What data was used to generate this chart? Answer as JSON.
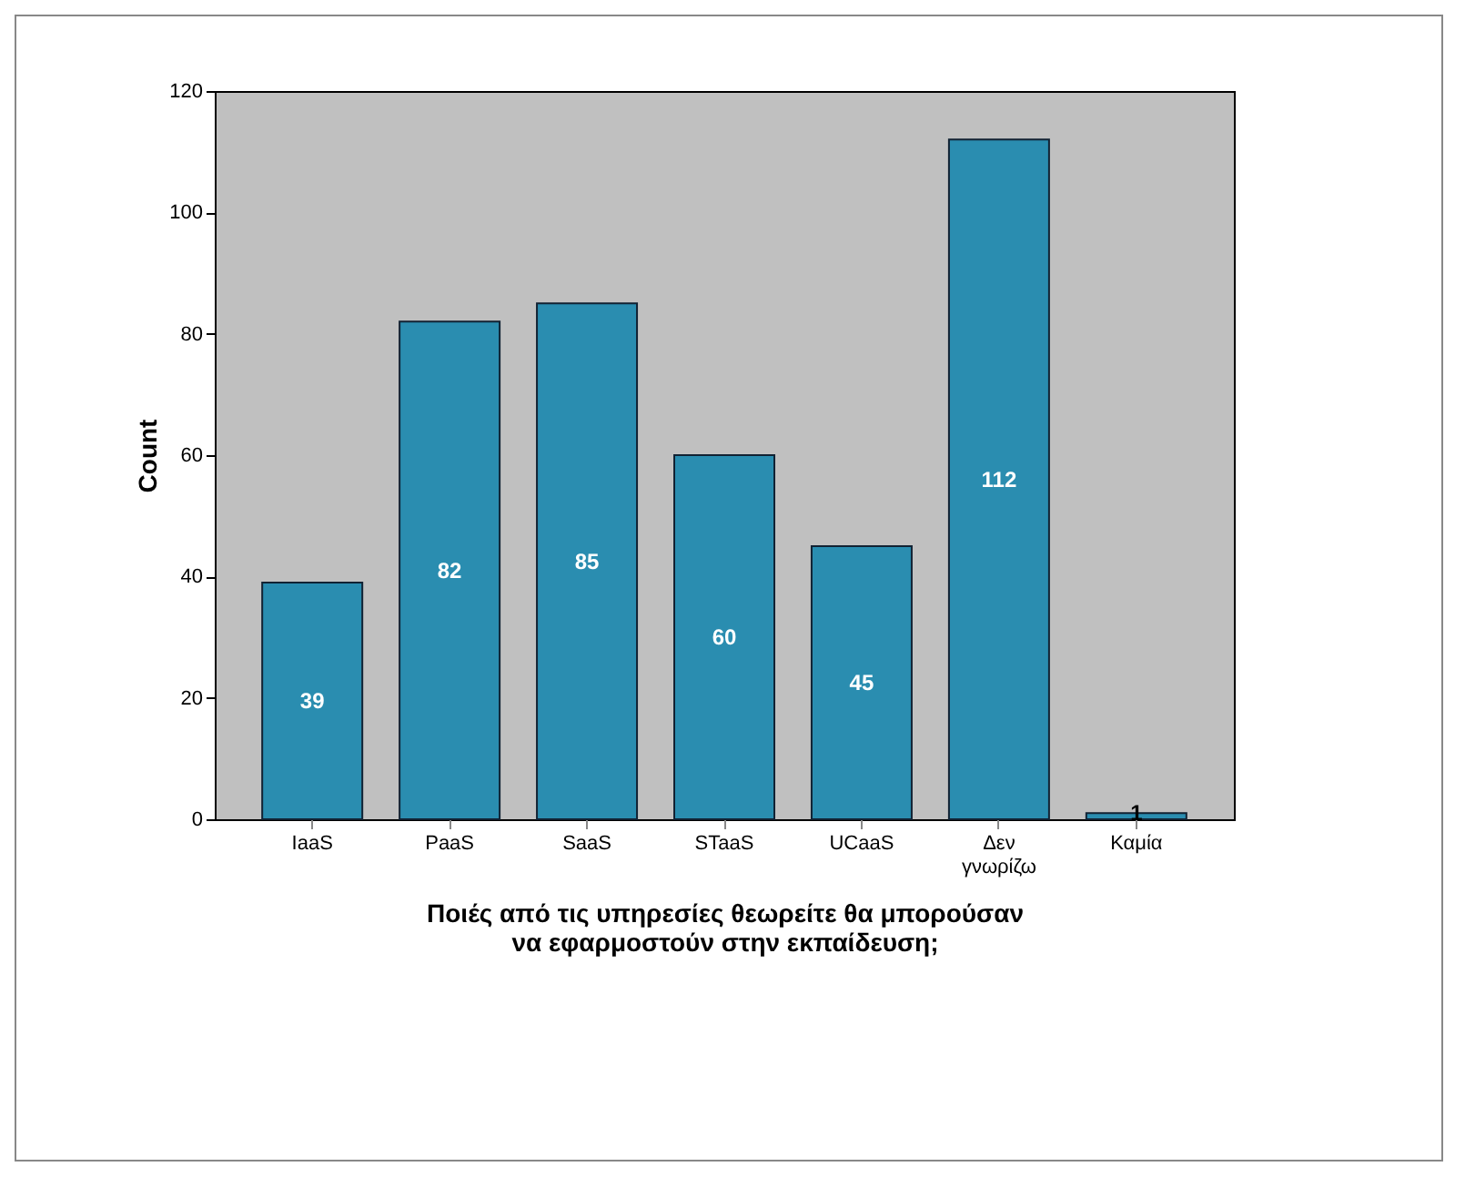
{
  "chart_data": {
    "type": "bar",
    "xlabel": "Ποιές από τις υπηρεσίες θεωρείτε θα μπορούσαν να εφαρμοστούν στην εκπαίδευση;",
    "ylabel": "Count",
    "categories": [
      "IaaS",
      "PaaS",
      "SaaS",
      "STaaS",
      "UCaaS",
      "Δεν γνωρίζω",
      "Καμία"
    ],
    "values": [
      39,
      82,
      85,
      60,
      45,
      112,
      1
    ],
    "color": "#2a8db0",
    "ylim": [
      0,
      120
    ],
    "yticks": [
      0,
      20,
      40,
      60,
      80,
      100,
      120
    ],
    "grid": false,
    "data_labels": true
  }
}
